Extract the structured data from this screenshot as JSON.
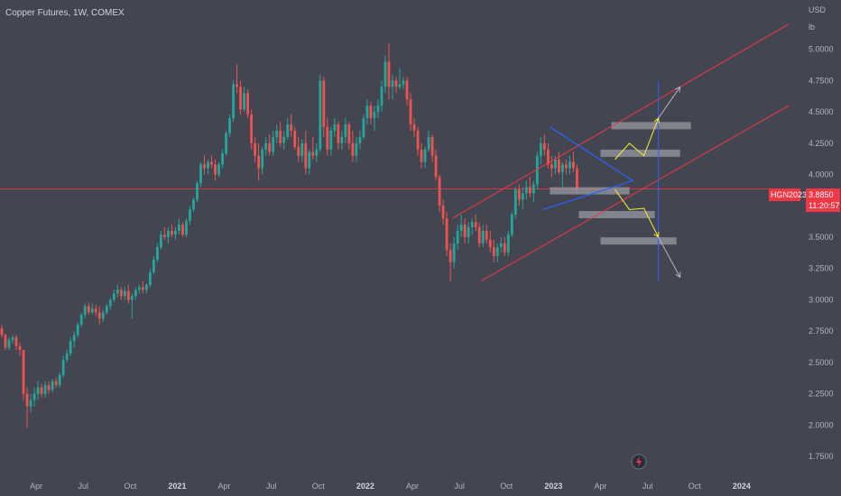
{
  "title": "Copper Futures, 1W, COMEX",
  "currency": "USD",
  "unit": "lb",
  "colors": {
    "background": "#434651",
    "up": "#26a69a",
    "down": "#ef5350",
    "channel": "#f23645",
    "triangle": "#2962ff",
    "projection_arrow": "#f7f13a",
    "box": "#9598a1",
    "vline": "#2962ff",
    "grey_arrow": "#b2b5be",
    "price_tag": "#f23645"
  },
  "price_tag": {
    "symbol": "HGN2023",
    "price": "3.8850",
    "countdown": "11:20:57"
  },
  "lightning_icon": "lightning-icon",
  "chart_data": {
    "type": "candlestick",
    "interval": "1W",
    "ylim": [
      1.65,
      5.35
    ],
    "y_ticks": [
      "5.0000",
      "4.7500",
      "4.5000",
      "4.2500",
      "4.0000",
      "3.7500",
      "3.5000",
      "3.2500",
      "3.0000",
      "2.7500",
      "2.5000",
      "2.2500",
      "2.0000",
      "1.7500"
    ],
    "x_ticks": [
      {
        "label": "Apr",
        "week": 10
      },
      {
        "label": "Jul",
        "week": 23
      },
      {
        "label": "Oct",
        "week": 36
      },
      {
        "label": "2021",
        "week": 49,
        "bold": true
      },
      {
        "label": "Apr",
        "week": 62
      },
      {
        "label": "Jul",
        "week": 75
      },
      {
        "label": "Oct",
        "week": 88
      },
      {
        "label": "2022",
        "week": 101,
        "bold": true
      },
      {
        "label": "Apr",
        "week": 114
      },
      {
        "label": "Jul",
        "week": 127
      },
      {
        "label": "Oct",
        "week": 140
      },
      {
        "label": "2023",
        "week": 153,
        "bold": true
      },
      {
        "label": "Apr",
        "week": 166
      },
      {
        "label": "Jul",
        "week": 179
      },
      {
        "label": "Oct",
        "week": 192
      },
      {
        "label": "2024",
        "week": 205,
        "bold": true
      }
    ],
    "xlim": [
      0,
      222
    ],
    "ohlc": [
      [
        2.77,
        2.8,
        2.7,
        2.72
      ],
      [
        2.72,
        2.73,
        2.6,
        2.62
      ],
      [
        2.62,
        2.7,
        2.6,
        2.68
      ],
      [
        2.68,
        2.72,
        2.65,
        2.7
      ],
      [
        2.7,
        2.72,
        2.6,
        2.63
      ],
      [
        2.63,
        2.66,
        2.55,
        2.6
      ],
      [
        2.6,
        2.6,
        2.2,
        2.25
      ],
      [
        2.25,
        2.3,
        1.98,
        2.15
      ],
      [
        2.15,
        2.25,
        2.1,
        2.2
      ],
      [
        2.2,
        2.3,
        2.15,
        2.25
      ],
      [
        2.25,
        2.35,
        2.2,
        2.3
      ],
      [
        2.3,
        2.33,
        2.22,
        2.25
      ],
      [
        2.25,
        2.35,
        2.22,
        2.32
      ],
      [
        2.32,
        2.35,
        2.25,
        2.28
      ],
      [
        2.28,
        2.37,
        2.26,
        2.35
      ],
      [
        2.35,
        2.38,
        2.3,
        2.32
      ],
      [
        2.32,
        2.42,
        2.3,
        2.4
      ],
      [
        2.4,
        2.55,
        2.38,
        2.52
      ],
      [
        2.52,
        2.6,
        2.5,
        2.57
      ],
      [
        2.57,
        2.7,
        2.55,
        2.67
      ],
      [
        2.67,
        2.75,
        2.62,
        2.72
      ],
      [
        2.72,
        2.82,
        2.7,
        2.8
      ],
      [
        2.8,
        2.9,
        2.78,
        2.88
      ],
      [
        2.88,
        2.97,
        2.85,
        2.95
      ],
      [
        2.95,
        2.98,
        2.88,
        2.9
      ],
      [
        2.9,
        2.97,
        2.88,
        2.93
      ],
      [
        2.93,
        2.96,
        2.87,
        2.9
      ],
      [
        2.9,
        2.95,
        2.8,
        2.85
      ],
      [
        2.85,
        2.92,
        2.82,
        2.9
      ],
      [
        2.9,
        2.97,
        2.88,
        2.95
      ],
      [
        2.95,
        3.02,
        2.92,
        3.0
      ],
      [
        3.0,
        3.08,
        2.98,
        3.05
      ],
      [
        3.05,
        3.12,
        3.02,
        3.08
      ],
      [
        3.08,
        3.1,
        3.0,
        3.03
      ],
      [
        3.03,
        3.1,
        3.0,
        3.07
      ],
      [
        3.07,
        3.12,
        2.97,
        3.0
      ],
      [
        3.0,
        3.05,
        2.85,
        3.03
      ],
      [
        3.03,
        3.1,
        3.0,
        3.08
      ],
      [
        3.08,
        3.12,
        3.05,
        3.1
      ],
      [
        3.1,
        3.15,
        3.05,
        3.08
      ],
      [
        3.08,
        3.13,
        3.05,
        3.12
      ],
      [
        3.12,
        3.25,
        3.1,
        3.22
      ],
      [
        3.22,
        3.35,
        3.2,
        3.32
      ],
      [
        3.32,
        3.45,
        3.3,
        3.42
      ],
      [
        3.42,
        3.55,
        3.4,
        3.52
      ],
      [
        3.52,
        3.58,
        3.48,
        3.5
      ],
      [
        3.5,
        3.58,
        3.45,
        3.55
      ],
      [
        3.55,
        3.6,
        3.5,
        3.52
      ],
      [
        3.52,
        3.58,
        3.48,
        3.55
      ],
      [
        3.55,
        3.65,
        3.52,
        3.6
      ],
      [
        3.6,
        3.62,
        3.5,
        3.52
      ],
      [
        3.52,
        3.65,
        3.5,
        3.63
      ],
      [
        3.63,
        3.75,
        3.6,
        3.72
      ],
      [
        3.72,
        3.82,
        3.7,
        3.8
      ],
      [
        3.8,
        3.95,
        3.78,
        3.93
      ],
      [
        3.93,
        4.1,
        3.9,
        4.08
      ],
      [
        4.08,
        4.15,
        4.0,
        4.05
      ],
      [
        4.05,
        4.12,
        4.0,
        4.1
      ],
      [
        4.1,
        4.15,
        4.05,
        4.08
      ],
      [
        4.08,
        4.12,
        3.95,
        4.0
      ],
      [
        4.0,
        4.1,
        3.98,
        4.08
      ],
      [
        4.08,
        4.2,
        4.05,
        4.17
      ],
      [
        4.17,
        4.35,
        4.15,
        4.33
      ],
      [
        4.33,
        4.48,
        4.3,
        4.45
      ],
      [
        4.45,
        4.75,
        4.42,
        4.72
      ],
      [
        4.72,
        4.88,
        4.65,
        4.7
      ],
      [
        4.7,
        4.75,
        4.48,
        4.52
      ],
      [
        4.52,
        4.7,
        4.5,
        4.65
      ],
      [
        4.65,
        4.68,
        4.45,
        4.48
      ],
      [
        4.48,
        4.52,
        4.2,
        4.25
      ],
      [
        4.25,
        4.3,
        4.1,
        4.15
      ],
      [
        4.15,
        4.25,
        3.95,
        4.05
      ],
      [
        4.05,
        4.22,
        4.0,
        4.2
      ],
      [
        4.2,
        4.3,
        4.15,
        4.25
      ],
      [
        4.25,
        4.32,
        4.15,
        4.18
      ],
      [
        4.18,
        4.35,
        4.15,
        4.3
      ],
      [
        4.3,
        4.4,
        4.25,
        4.35
      ],
      [
        4.35,
        4.42,
        4.22,
        4.25
      ],
      [
        4.25,
        4.35,
        4.2,
        4.3
      ],
      [
        4.3,
        4.45,
        4.28,
        4.4
      ],
      [
        4.4,
        4.48,
        4.3,
        4.35
      ],
      [
        4.35,
        4.38,
        4.2,
        4.22
      ],
      [
        4.22,
        4.3,
        4.1,
        4.15
      ],
      [
        4.15,
        4.28,
        4.1,
        4.25
      ],
      [
        4.25,
        4.35,
        4.0,
        4.05
      ],
      [
        4.05,
        4.2,
        4.0,
        4.18
      ],
      [
        4.18,
        4.3,
        4.12,
        4.15
      ],
      [
        4.15,
        4.25,
        4.1,
        4.2
      ],
      [
        4.2,
        4.8,
        4.18,
        4.75
      ],
      [
        4.75,
        4.78,
        4.3,
        4.38
      ],
      [
        4.38,
        4.45,
        4.15,
        4.2
      ],
      [
        4.2,
        4.38,
        4.15,
        4.35
      ],
      [
        4.35,
        4.45,
        4.3,
        4.4
      ],
      [
        4.4,
        4.42,
        4.2,
        4.25
      ],
      [
        4.25,
        4.35,
        4.2,
        4.3
      ],
      [
        4.3,
        4.45,
        4.25,
        4.4
      ],
      [
        4.4,
        4.42,
        4.2,
        4.25
      ],
      [
        4.25,
        4.35,
        4.1,
        4.15
      ],
      [
        4.15,
        4.3,
        4.1,
        4.25
      ],
      [
        4.25,
        4.35,
        4.2,
        4.3
      ],
      [
        4.3,
        4.48,
        4.28,
        4.45
      ],
      [
        4.45,
        4.6,
        4.4,
        4.55
      ],
      [
        4.55,
        4.58,
        4.4,
        4.45
      ],
      [
        4.45,
        4.55,
        4.35,
        4.5
      ],
      [
        4.5,
        4.6,
        4.45,
        4.55
      ],
      [
        4.55,
        4.75,
        4.5,
        4.7
      ],
      [
        4.7,
        4.95,
        4.65,
        4.9
      ],
      [
        4.9,
        5.05,
        4.6,
        4.7
      ],
      [
        4.7,
        4.8,
        4.6,
        4.75
      ],
      [
        4.75,
        4.78,
        4.65,
        4.7
      ],
      [
        4.7,
        4.85,
        4.68,
        4.72
      ],
      [
        4.72,
        4.78,
        4.68,
        4.75
      ],
      [
        4.75,
        4.78,
        4.55,
        4.6
      ],
      [
        4.6,
        4.65,
        4.35,
        4.4
      ],
      [
        4.4,
        4.45,
        4.3,
        4.35
      ],
      [
        4.35,
        4.38,
        4.15,
        4.2
      ],
      [
        4.2,
        4.25,
        4.05,
        4.1
      ],
      [
        4.1,
        4.22,
        4.05,
        4.2
      ],
      [
        4.2,
        4.35,
        4.18,
        4.3
      ],
      [
        4.3,
        4.32,
        4.1,
        4.15
      ],
      [
        4.15,
        4.2,
        3.95,
        3.98
      ],
      [
        3.98,
        4.0,
        3.7,
        3.75
      ],
      [
        3.75,
        3.8,
        3.6,
        3.65
      ],
      [
        3.65,
        3.7,
        3.35,
        3.4
      ],
      [
        3.4,
        3.45,
        3.15,
        3.3
      ],
      [
        3.3,
        3.5,
        3.25,
        3.45
      ],
      [
        3.45,
        3.6,
        3.4,
        3.55
      ],
      [
        3.55,
        3.68,
        3.5,
        3.6
      ],
      [
        3.6,
        3.65,
        3.45,
        3.5
      ],
      [
        3.5,
        3.62,
        3.45,
        3.58
      ],
      [
        3.58,
        3.65,
        3.52,
        3.62
      ],
      [
        3.62,
        3.68,
        3.55,
        3.58
      ],
      [
        3.58,
        3.62,
        3.42,
        3.45
      ],
      [
        3.45,
        3.6,
        3.42,
        3.55
      ],
      [
        3.55,
        3.6,
        3.45,
        3.48
      ],
      [
        3.48,
        3.55,
        3.38,
        3.42
      ],
      [
        3.42,
        3.48,
        3.3,
        3.35
      ],
      [
        3.35,
        3.45,
        3.3,
        3.42
      ],
      [
        3.42,
        3.5,
        3.38,
        3.45
      ],
      [
        3.45,
        3.5,
        3.35,
        3.38
      ],
      [
        3.38,
        3.55,
        3.35,
        3.52
      ],
      [
        3.52,
        3.7,
        3.5,
        3.68
      ],
      [
        3.68,
        3.9,
        3.65,
        3.88
      ],
      [
        3.88,
        3.92,
        3.75,
        3.8
      ],
      [
        3.8,
        3.9,
        3.72,
        3.85
      ],
      [
        3.85,
        3.95,
        3.8,
        3.9
      ],
      [
        3.9,
        3.98,
        3.82,
        3.85
      ],
      [
        3.85,
        3.95,
        3.78,
        3.92
      ],
      [
        3.92,
        4.18,
        3.88,
        4.15
      ],
      [
        4.15,
        4.3,
        4.08,
        4.25
      ],
      [
        4.25,
        4.32,
        4.15,
        4.2
      ],
      [
        4.2,
        4.25,
        4.05,
        4.08
      ],
      [
        4.08,
        4.15,
        3.98,
        4.05
      ],
      [
        4.05,
        4.15,
        4.0,
        4.12
      ],
      [
        4.12,
        4.18,
        4.0,
        4.02
      ],
      [
        4.02,
        4.1,
        3.9,
        4.08
      ],
      [
        4.08,
        4.12,
        4.0,
        4.05
      ],
      [
        4.05,
        4.15,
        4.0,
        4.1
      ],
      [
        4.1,
        4.18,
        4.02,
        4.05
      ],
      [
        4.05,
        4.08,
        3.85,
        3.88
      ]
    ],
    "overlays": {
      "channel_upper": [
        [
          125,
          3.65
        ],
        [
          218,
          5.2
        ]
      ],
      "channel_lower": [
        [
          133,
          3.15
        ],
        [
          218,
          4.55
        ]
      ],
      "triangle_upper": [
        [
          152,
          4.38
        ],
        [
          175,
          3.95
        ]
      ],
      "triangle_lower": [
        [
          150,
          3.72
        ],
        [
          175,
          3.95
        ]
      ],
      "horizontal_price_line": 3.885,
      "boxes": [
        {
          "x0": 169,
          "x1": 191,
          "y": 4.39
        },
        {
          "x0": 166,
          "x1": 188,
          "y": 4.17
        },
        {
          "x0": 152,
          "x1": 174,
          "y": 3.87
        },
        {
          "x0": 160,
          "x1": 181,
          "y": 3.68
        },
        {
          "x0": 166,
          "x1": 187,
          "y": 3.47
        }
      ],
      "up_path": [
        [
          170,
          4.12
        ],
        [
          174,
          4.25
        ],
        [
          178,
          4.15
        ],
        [
          182,
          4.45
        ]
      ],
      "up_arrow_grey": [
        [
          182,
          4.45
        ],
        [
          188,
          4.7
        ]
      ],
      "down_path": [
        [
          170,
          3.88
        ],
        [
          174,
          3.72
        ],
        [
          178,
          3.73
        ],
        [
          182,
          3.5
        ]
      ],
      "down_arrow_grey": [
        [
          182,
          3.5
        ],
        [
          188,
          3.18
        ]
      ],
      "vertical_line": {
        "x": 182,
        "y0": 3.15,
        "y1": 4.75
      }
    }
  }
}
